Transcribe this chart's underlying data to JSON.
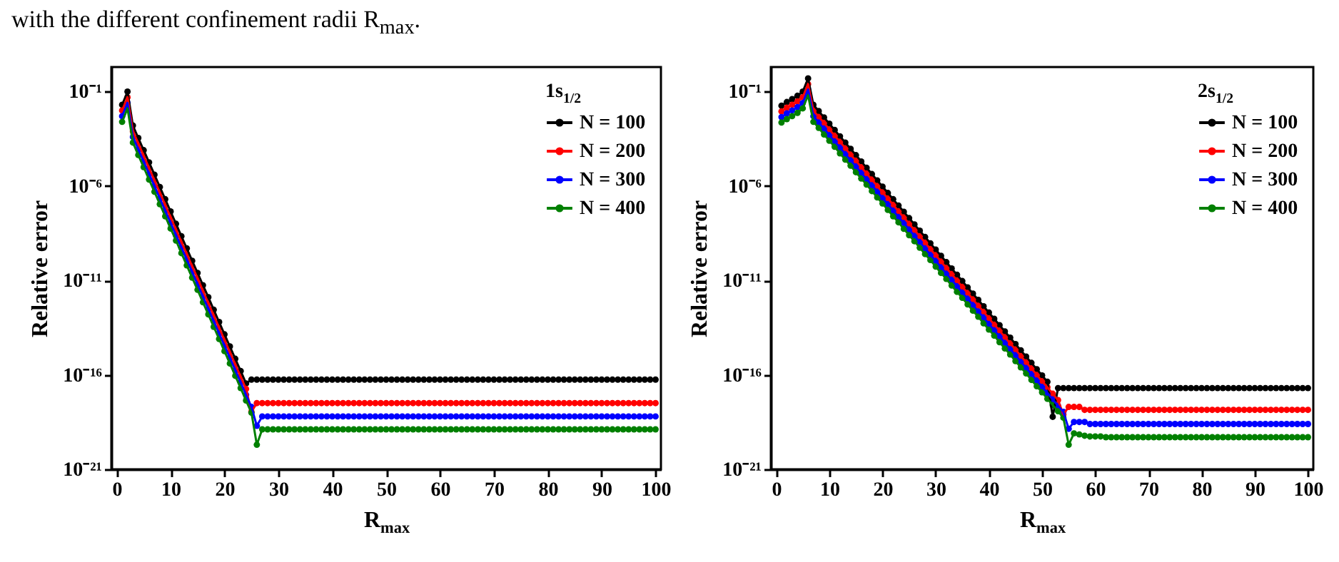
{
  "chart_data": [
    {
      "type": "line",
      "legend_title": "1s$_{1/2}$",
      "xlabel": "R$_{max}$",
      "ylabel": "Relative error",
      "annotations": [
        "with the different confinement radii R$_{max}$."
      ],
      "log": "y",
      "grid": false,
      "legend": "top right",
      "marker": "circle",
      "line_style": "solid",
      "xlim": [
        -1,
        101
      ],
      "xticks": [
        0,
        10,
        20,
        30,
        40,
        50,
        60,
        70,
        80,
        90,
        100
      ],
      "ylim": [
        1e-21,
        2
      ],
      "yticks": [
        {
          "value": 1e-21,
          "label": "10⁻²¹"
        },
        {
          "value": 1e-16,
          "label": "10⁻¹⁶"
        },
        {
          "value": 1e-11,
          "label": "10⁻¹¹"
        },
        {
          "value": 1e-06,
          "label": "10⁻⁶"
        },
        {
          "value": 0.1,
          "label": "10⁻¹"
        }
      ],
      "x": [
        1,
        2,
        3,
        4,
        5,
        6,
        7,
        8,
        9,
        10,
        11,
        12,
        13,
        14,
        15,
        16,
        17,
        18,
        19,
        20,
        21,
        22,
        23,
        24,
        25,
        26,
        27,
        28,
        29,
        30,
        31,
        32,
        33,
        34,
        35,
        36,
        37,
        38,
        39,
        40,
        41,
        42,
        43,
        44,
        45,
        46,
        47,
        48,
        49,
        50,
        51,
        52,
        53,
        54,
        55,
        56,
        57,
        58,
        59,
        60,
        61,
        62,
        63,
        64,
        65,
        66,
        67,
        68,
        69,
        70,
        71,
        72,
        73,
        74,
        75,
        76,
        77,
        78,
        79,
        80,
        81,
        82,
        83,
        84,
        85,
        86,
        87,
        88,
        89,
        90,
        91,
        92,
        93,
        94,
        95,
        96,
        97,
        98,
        99,
        100
      ],
      "series": [
        {
          "name": "N = 100",
          "color": "#000000",
          "values": [
            0.02,
            0.1,
            0.0016,
            0.00035,
            7.9e-05,
            1.8e-05,
            4e-06,
            8.9e-07,
            2e-07,
            4.5e-08,
            1e-08,
            2.2e-09,
            5e-10,
            1.1e-10,
            2.5e-11,
            5.6e-12,
            1.3e-12,
            2.8e-13,
            6.3e-14,
            1.4e-14,
            3.2e-15,
            7.1e-16,
            1.6e-16,
            3.5e-17,
            5.6e-17,
            5.6e-17,
            5.6e-17,
            5.6e-17,
            5.6e-17,
            5.6e-17,
            5.6e-17,
            5.6e-17,
            5.6e-17,
            5.6e-17,
            5.6e-17,
            5.6e-17,
            5.6e-17,
            5.6e-17,
            5.6e-17,
            5.6e-17,
            5.6e-17,
            5.6e-17,
            5.6e-17,
            5.6e-17,
            5.6e-17,
            5.6e-17,
            5.6e-17,
            5.6e-17,
            5.6e-17,
            5.6e-17,
            5.6e-17,
            5.6e-17,
            5.6e-17,
            5.6e-17,
            5.6e-17,
            5.6e-17,
            5.6e-17,
            5.6e-17,
            5.6e-17,
            5.6e-17,
            5.6e-17,
            5.6e-17,
            5.6e-17,
            5.6e-17,
            5.6e-17,
            5.6e-17,
            5.6e-17,
            5.6e-17,
            5.6e-17,
            5.6e-17,
            5.6e-17,
            5.6e-17,
            5.6e-17,
            5.6e-17,
            5.6e-17,
            5.6e-17,
            5.6e-17,
            5.6e-17,
            5.6e-17,
            5.6e-17,
            5.6e-17,
            5.6e-17,
            5.6e-17,
            5.6e-17,
            5.6e-17,
            5.6e-17,
            5.6e-17,
            5.6e-17,
            5.6e-17,
            5.6e-17,
            5.6e-17,
            5.6e-17,
            5.6e-17,
            5.6e-17,
            5.6e-17,
            5.6e-17,
            5.6e-17,
            5.6e-17,
            5.6e-17,
            5.6e-17
          ]
        },
        {
          "name": "N = 200",
          "color": "#ff0000",
          "values": [
            0.01,
            0.05,
            0.0008,
            0.00018,
            4e-05,
            9e-06,
            2e-06,
            4.5e-07,
            1e-07,
            2.2e-08,
            5e-09,
            1.1e-09,
            2.5e-10,
            5.6e-11,
            1.3e-11,
            2.8e-12,
            6.3e-13,
            1.4e-13,
            3.2e-14,
            7e-15,
            1.6e-15,
            3.5e-16,
            8e-17,
            1.8e-17,
            1.1e-18,
            3.2e-18,
            3.2e-18,
            3.2e-18,
            3.2e-18,
            3.2e-18,
            3.2e-18,
            3.2e-18,
            3.2e-18,
            3.2e-18,
            3.2e-18,
            3.2e-18,
            3.2e-18,
            3.2e-18,
            3.2e-18,
            3.2e-18,
            3.2e-18,
            3.2e-18,
            3.2e-18,
            3.2e-18,
            3.2e-18,
            3.2e-18,
            3.2e-18,
            3.2e-18,
            3.2e-18,
            3.2e-18,
            3.2e-18,
            3.2e-18,
            3.2e-18,
            3.2e-18,
            3.2e-18,
            3.2e-18,
            3.2e-18,
            3.2e-18,
            3.2e-18,
            3.2e-18,
            3.2e-18,
            3.2e-18,
            3.2e-18,
            3.2e-18,
            3.2e-18,
            3.2e-18,
            3.2e-18,
            3.2e-18,
            3.2e-18,
            3.2e-18,
            3.2e-18,
            3.2e-18,
            3.2e-18,
            3.2e-18,
            3.2e-18,
            3.2e-18,
            3.2e-18,
            3.2e-18,
            3.2e-18,
            3.2e-18,
            3.2e-18,
            3.2e-18,
            3.2e-18,
            3.2e-18,
            3.2e-18,
            3.2e-18,
            3.2e-18,
            3.2e-18,
            3.2e-18,
            3.2e-18,
            3.2e-18,
            3.2e-18,
            3.2e-18,
            3.2e-18,
            3.2e-18,
            3.2e-18,
            3.2e-18,
            3.2e-18,
            3.2e-18,
            3.2e-18
          ]
        },
        {
          "name": "N = 300",
          "color": "#0000ff",
          "values": [
            0.005,
            0.025,
            0.0004,
            8.8e-05,
            2e-05,
            4.5e-06,
            1e-06,
            2.2e-07,
            5e-08,
            1.1e-08,
            2.5e-09,
            5.5e-10,
            1.3e-10,
            2.8e-11,
            6.3e-12,
            1.4e-12,
            3.2e-13,
            7e-14,
            1.6e-14,
            3.5e-15,
            8e-16,
            1.8e-16,
            4e-17,
            8.8e-18,
            2e-18,
            2e-19,
            6.3e-19,
            6.3e-19,
            6.3e-19,
            6.3e-19,
            6.3e-19,
            6.3e-19,
            6.3e-19,
            6.3e-19,
            6.3e-19,
            6.3e-19,
            6.3e-19,
            6.3e-19,
            6.3e-19,
            6.3e-19,
            6.3e-19,
            6.3e-19,
            6.3e-19,
            6.3e-19,
            6.3e-19,
            6.3e-19,
            6.3e-19,
            6.3e-19,
            6.3e-19,
            6.3e-19,
            6.3e-19,
            6.3e-19,
            6.3e-19,
            6.3e-19,
            6.3e-19,
            6.3e-19,
            6.3e-19,
            6.3e-19,
            6.3e-19,
            6.3e-19,
            6.3e-19,
            6.3e-19,
            6.3e-19,
            6.3e-19,
            6.3e-19,
            6.3e-19,
            6.3e-19,
            6.3e-19,
            6.3e-19,
            6.3e-19,
            6.3e-19,
            6.3e-19,
            6.3e-19,
            6.3e-19,
            6.3e-19,
            6.3e-19,
            6.3e-19,
            6.3e-19,
            6.3e-19,
            6.3e-19,
            6.3e-19,
            6.3e-19,
            6.3e-19,
            6.3e-19,
            6.3e-19,
            6.3e-19,
            6.3e-19,
            6.3e-19,
            6.3e-19,
            6.3e-19,
            6.3e-19,
            6.3e-19,
            6.3e-19,
            6.3e-19,
            6.3e-19,
            6.3e-19,
            6.3e-19,
            6.3e-19,
            6.3e-19,
            6.3e-19
          ]
        },
        {
          "name": "N = 400",
          "color": "#008000",
          "values": [
            0.0025,
            0.013,
            0.0002,
            4.4e-05,
            1e-05,
            2.2e-06,
            5e-07,
            1.1e-07,
            2.5e-08,
            5.6e-09,
            1.3e-09,
            2.8e-10,
            6.3e-11,
            1.4e-11,
            3.2e-12,
            7e-13,
            1.6e-13,
            3.5e-14,
            8e-15,
            1.8e-15,
            4e-16,
            8.9e-17,
            2e-17,
            4.4e-18,
            1e-18,
            2e-20,
            1.3e-19,
            1.3e-19,
            1.3e-19,
            1.3e-19,
            1.3e-19,
            1.3e-19,
            1.3e-19,
            1.3e-19,
            1.3e-19,
            1.3e-19,
            1.3e-19,
            1.3e-19,
            1.3e-19,
            1.3e-19,
            1.3e-19,
            1.3e-19,
            1.3e-19,
            1.3e-19,
            1.3e-19,
            1.3e-19,
            1.3e-19,
            1.3e-19,
            1.3e-19,
            1.3e-19,
            1.3e-19,
            1.3e-19,
            1.3e-19,
            1.3e-19,
            1.3e-19,
            1.3e-19,
            1.3e-19,
            1.3e-19,
            1.3e-19,
            1.3e-19,
            1.3e-19,
            1.3e-19,
            1.3e-19,
            1.3e-19,
            1.3e-19,
            1.3e-19,
            1.3e-19,
            1.3e-19,
            1.3e-19,
            1.3e-19,
            1.3e-19,
            1.3e-19,
            1.3e-19,
            1.3e-19,
            1.3e-19,
            1.3e-19,
            1.3e-19,
            1.3e-19,
            1.3e-19,
            1.3e-19,
            1.3e-19,
            1.3e-19,
            1.3e-19,
            1.3e-19,
            1.3e-19,
            1.3e-19,
            1.3e-19,
            1.3e-19,
            1.3e-19,
            1.3e-19,
            1.3e-19,
            1.3e-19,
            1.3e-19,
            1.3e-19,
            1.3e-19,
            1.3e-19,
            1.3e-19,
            1.3e-19,
            1.3e-19,
            1.3e-19
          ]
        }
      ]
    },
    {
      "type": "line",
      "legend_title": "2s$_{1/2}$",
      "xlabel": "R$_{max}$",
      "ylabel": "Relative error",
      "log": "y",
      "grid": false,
      "legend": "top right",
      "marker": "circle",
      "line_style": "solid",
      "xlim": [
        -1,
        101
      ],
      "xticks": [
        0,
        10,
        20,
        30,
        40,
        50,
        60,
        70,
        80,
        90,
        100
      ],
      "ylim": [
        1e-21,
        2
      ],
      "yticks": [
        {
          "value": 1e-21,
          "label": "10⁻²¹"
        },
        {
          "value": 1e-16,
          "label": "10⁻¹⁶"
        },
        {
          "value": 1e-11,
          "label": "10⁻¹¹"
        },
        {
          "value": 1e-06,
          "label": "10⁻⁶"
        },
        {
          "value": 0.1,
          "label": "10⁻¹"
        }
      ],
      "x": [
        1,
        2,
        3,
        4,
        5,
        6,
        7,
        8,
        9,
        10,
        11,
        12,
        13,
        14,
        15,
        16,
        17,
        18,
        19,
        20,
        21,
        22,
        23,
        24,
        25,
        26,
        27,
        28,
        29,
        30,
        31,
        32,
        33,
        34,
        35,
        36,
        37,
        38,
        39,
        40,
        41,
        42,
        43,
        44,
        45,
        46,
        47,
        48,
        49,
        50,
        51,
        52,
        53,
        54,
        55,
        56,
        57,
        58,
        59,
        60,
        61,
        62,
        63,
        64,
        65,
        66,
        67,
        68,
        69,
        70,
        71,
        72,
        73,
        74,
        75,
        76,
        77,
        78,
        79,
        80,
        81,
        82,
        83,
        84,
        85,
        86,
        87,
        88,
        89,
        90,
        91,
        92,
        93,
        94,
        95,
        96,
        97,
        98,
        99,
        100
      ],
      "series": [
        {
          "name": "N = 100",
          "color": "#000000",
          "values": [
            0.018,
            0.028,
            0.04,
            0.06,
            0.1,
            0.5,
            0.02,
            0.0093,
            0.0043,
            0.002,
            0.00093,
            0.00043,
            0.0002,
            9.3e-05,
            4.3e-05,
            2e-05,
            9.3e-06,
            4.3e-06,
            2e-06,
            9.3e-07,
            4.3e-07,
            2e-07,
            9.3e-08,
            4.3e-08,
            2e-08,
            9.3e-09,
            4.3e-09,
            2e-09,
            9.3e-10,
            4.3e-10,
            2e-10,
            9.3e-11,
            4.3e-11,
            2e-11,
            9.3e-12,
            4.3e-12,
            2e-12,
            9.3e-13,
            4.3e-13,
            2e-13,
            9.3e-14,
            4.3e-14,
            2e-14,
            9.3e-15,
            4.3e-15,
            2e-15,
            9.3e-16,
            4.3e-16,
            2e-16,
            9.3e-17,
            4.3e-17,
            6e-19,
            2e-17,
            2e-17,
            2e-17,
            2e-17,
            2e-17,
            2e-17,
            2e-17,
            2e-17,
            2e-17,
            2e-17,
            2e-17,
            2e-17,
            2e-17,
            2e-17,
            2e-17,
            2e-17,
            2e-17,
            2e-17,
            2e-17,
            2e-17,
            2e-17,
            2e-17,
            2e-17,
            2e-17,
            2e-17,
            2e-17,
            2e-17,
            2e-17,
            2e-17,
            2e-17,
            2e-17,
            2e-17,
            2e-17,
            2e-17,
            2e-17,
            2e-17,
            2e-17,
            2e-17,
            2e-17,
            2e-17,
            2e-17,
            2e-17,
            2e-17,
            2e-17,
            2e-17,
            2e-17,
            2e-17,
            2e-17
          ]
        },
        {
          "name": "N = 200",
          "color": "#ff0000",
          "values": [
            0.009,
            0.014,
            0.02,
            0.03,
            0.05,
            0.25,
            0.01,
            0.0046,
            0.0022,
            0.001,
            0.00046,
            0.00022,
            0.0001,
            4.6e-05,
            2.2e-05,
            1e-05,
            4.6e-06,
            2.2e-06,
            1e-06,
            4.6e-07,
            2.2e-07,
            1e-07,
            4.6e-08,
            2.2e-08,
            1e-08,
            4.6e-09,
            2.2e-09,
            1e-09,
            4.6e-10,
            2.2e-10,
            1e-10,
            4.6e-11,
            2.2e-11,
            1e-11,
            4.6e-12,
            2.2e-12,
            1e-12,
            4.6e-13,
            2.2e-13,
            1e-13,
            4.6e-14,
            2.2e-14,
            1e-14,
            4.6e-15,
            2.2e-15,
            1e-15,
            4.6e-16,
            2.2e-16,
            1e-16,
            4.6e-17,
            2.2e-17,
            1e-17,
            4.6e-18,
            8e-19,
            2e-18,
            2e-18,
            2e-18,
            1.4e-18,
            1.4e-18,
            1.4e-18,
            1.4e-18,
            1.4e-18,
            1.4e-18,
            1.4e-18,
            1.4e-18,
            1.4e-18,
            1.4e-18,
            1.4e-18,
            1.4e-18,
            1.4e-18,
            1.4e-18,
            1.4e-18,
            1.4e-18,
            1.4e-18,
            1.4e-18,
            1.4e-18,
            1.4e-18,
            1.4e-18,
            1.4e-18,
            1.4e-18,
            1.4e-18,
            1.4e-18,
            1.4e-18,
            1.4e-18,
            1.4e-18,
            1.4e-18,
            1.4e-18,
            1.4e-18,
            1.4e-18,
            1.4e-18,
            1.4e-18,
            1.4e-18,
            1.4e-18,
            1.4e-18,
            1.4e-18,
            1.4e-18,
            1.4e-18,
            1.4e-18,
            1.4e-18,
            1.4e-18
          ]
        },
        {
          "name": "N = 300",
          "color": "#0000ff",
          "values": [
            0.0045,
            0.007,
            0.01,
            0.015,
            0.025,
            0.13,
            0.005,
            0.0023,
            0.0011,
            0.0005,
            0.00023,
            0.00011,
            5e-05,
            2.3e-05,
            1.1e-05,
            5e-06,
            2.3e-06,
            1.1e-06,
            5e-07,
            2.3e-07,
            1.1e-07,
            5e-08,
            2.3e-08,
            1.1e-08,
            5e-09,
            2.3e-09,
            1.1e-09,
            5e-10,
            2.3e-10,
            1.1e-10,
            5e-11,
            2.3e-11,
            1.1e-11,
            5e-12,
            2.3e-12,
            1.1e-12,
            5e-13,
            2.3e-13,
            1.1e-13,
            5e-14,
            2.3e-14,
            1.1e-14,
            5e-15,
            2.3e-15,
            1.1e-15,
            5e-16,
            2.3e-16,
            1.1e-16,
            5e-17,
            2.3e-17,
            1.1e-17,
            5e-18,
            2.3e-18,
            1.1e-18,
            1.4e-19,
            3.2e-19,
            3.2e-19,
            3.2e-19,
            2.5e-19,
            2.5e-19,
            2.5e-19,
            2.5e-19,
            2.5e-19,
            2.5e-19,
            2.5e-19,
            2.5e-19,
            2.5e-19,
            2.5e-19,
            2.5e-19,
            2.5e-19,
            2.5e-19,
            2.5e-19,
            2.5e-19,
            2.5e-19,
            2.5e-19,
            2.5e-19,
            2.5e-19,
            2.5e-19,
            2.5e-19,
            2.5e-19,
            2.5e-19,
            2.5e-19,
            2.5e-19,
            2.5e-19,
            2.5e-19,
            2.5e-19,
            2.5e-19,
            2.5e-19,
            2.5e-19,
            2.5e-19,
            2.5e-19,
            2.5e-19,
            2.5e-19,
            2.5e-19,
            2.5e-19,
            2.5e-19,
            2.5e-19,
            2.5e-19,
            2.5e-19,
            2.5e-19
          ]
        },
        {
          "name": "N = 400",
          "color": "#008000",
          "values": [
            0.0023,
            0.0035,
            0.005,
            0.0075,
            0.013,
            0.063,
            0.0025,
            0.0012,
            0.00054,
            0.00025,
            0.00012,
            5.4e-05,
            2.5e-05,
            1.2e-05,
            5.4e-06,
            2.5e-06,
            1.2e-06,
            5.4e-07,
            2.5e-07,
            1.2e-07,
            5.4e-08,
            2.5e-08,
            1.2e-08,
            5.4e-09,
            2.5e-09,
            1.2e-09,
            5.4e-10,
            2.5e-10,
            1.2e-10,
            5.4e-11,
            2.5e-11,
            1.2e-11,
            5.4e-12,
            2.5e-12,
            1.2e-12,
            5.4e-13,
            2.5e-13,
            1.2e-13,
            5.4e-14,
            2.5e-14,
            1.2e-14,
            5.4e-15,
            2.5e-15,
            1.2e-15,
            5.4e-16,
            2.5e-16,
            1.2e-16,
            5.4e-17,
            2.5e-17,
            1.2e-17,
            5.4e-18,
            2.5e-18,
            1.2e-18,
            5.4e-19,
            2e-20,
            8e-20,
            7e-20,
            6e-20,
            5.5e-20,
            5.5e-20,
            5.5e-20,
            5e-20,
            5e-20,
            5e-20,
            5e-20,
            5e-20,
            5e-20,
            5e-20,
            5e-20,
            5e-20,
            5e-20,
            5e-20,
            5e-20,
            5e-20,
            5e-20,
            5e-20,
            5e-20,
            5e-20,
            5e-20,
            5e-20,
            5e-20,
            5e-20,
            5e-20,
            5e-20,
            5e-20,
            5e-20,
            5e-20,
            5e-20,
            5e-20,
            5e-20,
            5e-20,
            5e-20,
            5e-20,
            5e-20,
            5e-20,
            5e-20,
            5e-20,
            5e-20,
            5e-20,
            5e-20
          ]
        }
      ]
    }
  ]
}
